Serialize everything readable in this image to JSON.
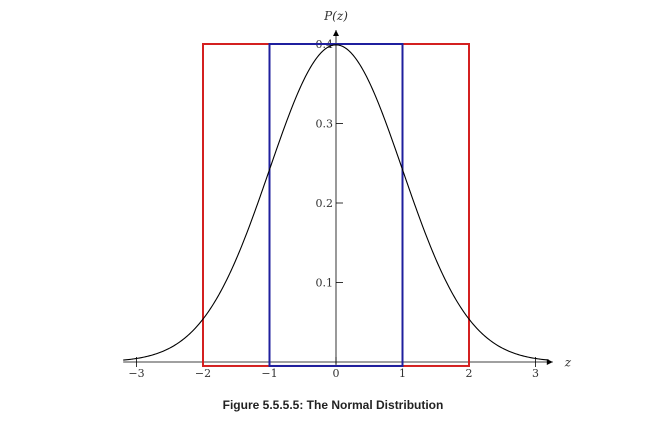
{
  "caption": "Figure 5.5.5.5: The Normal Distribution",
  "chart_data": {
    "type": "line",
    "xlabel": "z",
    "ylabel": "P(z)",
    "xlim": [
      -3.2,
      3.2
    ],
    "ylim": [
      -0.005,
      0.41
    ],
    "x_ticks": [
      -3,
      -2,
      -1,
      0,
      1,
      2,
      3
    ],
    "x_tick_labels": [
      "−3",
      "−2",
      "−1",
      "0",
      "1",
      "2",
      "3"
    ],
    "y_ticks": [
      0.1,
      0.2,
      0.3,
      0.4
    ],
    "y_tick_labels": [
      "0.1",
      "0.2",
      "0.3",
      "0.4"
    ],
    "grid": false,
    "series": [
      {
        "color": "#000000",
        "function": "standard-normal-pdf",
        "x": [
          -3.2,
          -3.0,
          -2.8,
          -2.6,
          -2.4,
          -2.2,
          -2.0,
          -1.8,
          -1.6,
          -1.4,
          -1.2,
          -1.0,
          -0.8,
          -0.6,
          -0.4,
          -0.2,
          0.0,
          0.2,
          0.4,
          0.6,
          0.8,
          1.0,
          1.2,
          1.4,
          1.6,
          1.8,
          2.0,
          2.2,
          2.4,
          2.6,
          2.8,
          3.0,
          3.2
        ],
        "y": [
          0.0024,
          0.0044,
          0.0079,
          0.0136,
          0.0224,
          0.0355,
          0.054,
          0.079,
          0.1109,
          0.1497,
          0.1942,
          0.242,
          0.2897,
          0.3332,
          0.3683,
          0.391,
          0.3989,
          0.391,
          0.3683,
          0.3332,
          0.2897,
          0.242,
          0.1942,
          0.1497,
          0.1109,
          0.079,
          0.054,
          0.0355,
          0.0224,
          0.0136,
          0.0079,
          0.0044,
          0.0024
        ]
      }
    ],
    "rectangles": [
      {
        "color": "#d42020",
        "x": [
          -2,
          2
        ],
        "y": [
          -0.005,
          0.4
        ]
      },
      {
        "color": "#1f1f9e",
        "x": [
          -1,
          1
        ],
        "y": [
          -0.005,
          0.4
        ]
      }
    ]
  }
}
